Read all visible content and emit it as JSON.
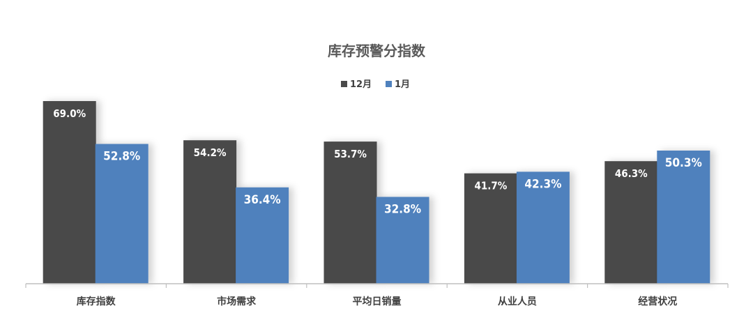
{
  "chart_data": {
    "type": "bar",
    "title": "库存预警分指数",
    "categories": [
      "库存指数",
      "市场需求",
      "平均日销量",
      "从业人员",
      "经营状况"
    ],
    "series": [
      {
        "name": "12月",
        "color": "#4a4a4a",
        "values": [
          69.0,
          54.2,
          53.7,
          41.7,
          46.3
        ],
        "labels": [
          "69.0%",
          "54.2%",
          "53.7%",
          "41.7%",
          "46.3%"
        ]
      },
      {
        "name": "1月",
        "color": "#4f81bd",
        "values": [
          52.8,
          36.4,
          32.8,
          42.3,
          50.3
        ],
        "labels": [
          "52.8%",
          "36.4%",
          "32.8%",
          "42.3%",
          "50.3%"
        ]
      }
    ],
    "ylim": [
      0,
      69.0
    ],
    "legend": "top-center",
    "grid": false,
    "xlabel": "",
    "ylabel": ""
  }
}
